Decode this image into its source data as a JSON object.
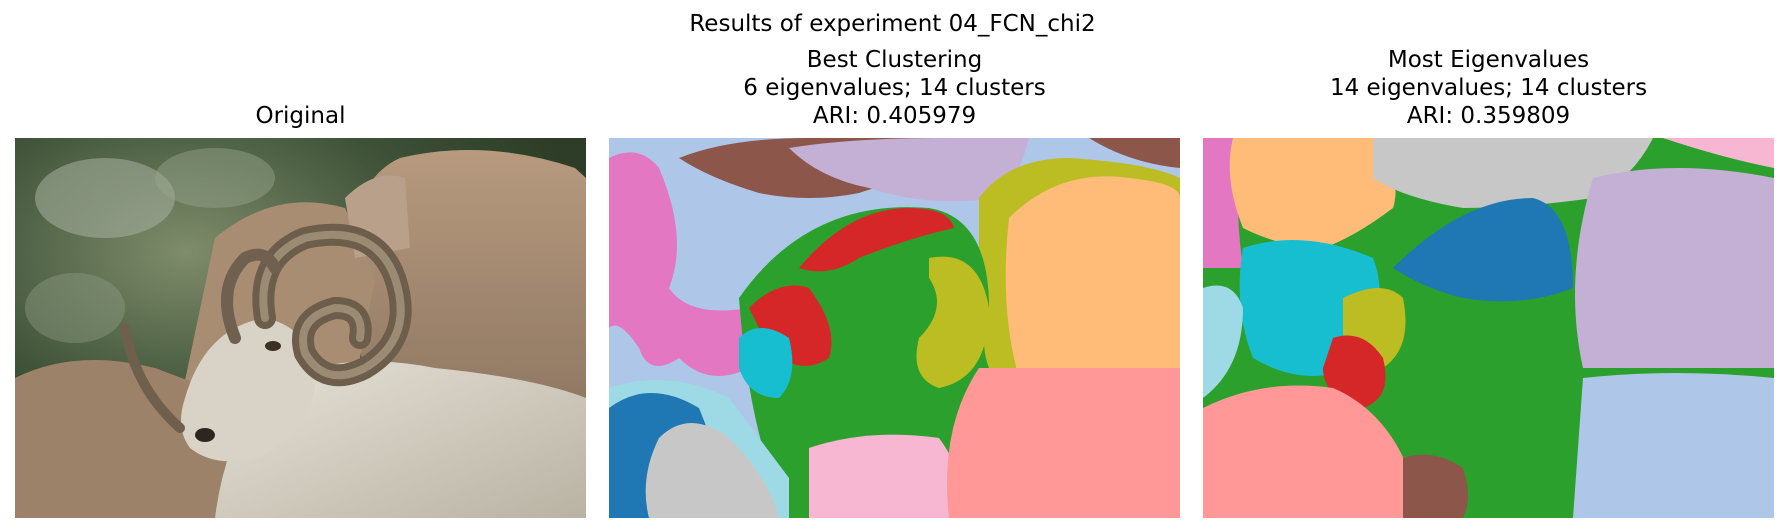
{
  "figure": {
    "suptitle": "Results of experiment 04_FCN_chi2"
  },
  "panels": [
    {
      "id": "original",
      "title_lines": [
        "Original"
      ],
      "image": "photo of a Dall sheep ram with curled horns in front of rocks"
    },
    {
      "id": "best",
      "title_lines": [
        "Best Clustering",
        "6 eigenvalues; 14 clusters",
        "ARI: 0.405979"
      ]
    },
    {
      "id": "most",
      "title_lines": [
        "Most Eigenvalues",
        "14 eigenvalues; 14 clusters",
        "ARI: 0.359809"
      ]
    }
  ],
  "colors": {
    "blue": "#1f77b4",
    "light_blue": "#aec7e8",
    "orange_light": "#ffbb78",
    "green": "#2ca02c",
    "red": "#d62728",
    "salmon": "#ff9896",
    "purple_light": "#c5b0d5",
    "brown": "#8c564b",
    "pink": "#e377c2",
    "pink_light": "#f7b6d2",
    "gray_light": "#c7c7c7",
    "olive": "#bcbd22",
    "cyan": "#17becf",
    "cyan_light": "#9edae5"
  }
}
